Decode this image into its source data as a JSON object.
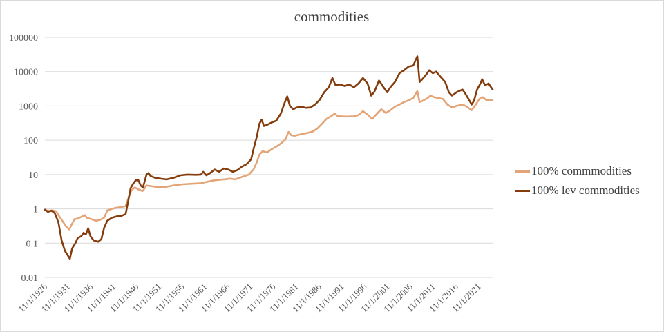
{
  "chart_data": {
    "type": "line",
    "title": "commodities",
    "xlabel": "",
    "ylabel": "",
    "y_scale": "log",
    "ylim": [
      0.01,
      100000
    ],
    "y_ticks": [
      "0.01",
      "0.1",
      "1",
      "10",
      "100",
      "1000",
      "10000",
      "100000"
    ],
    "x_tick_labels": [
      "11/1/1926",
      "11/1/1931",
      "11/1/1936",
      "11/1/1941",
      "11/1/1946",
      "11/1/1951",
      "11/1/1956",
      "11/1/1961",
      "11/1/1966",
      "11/1/1971",
      "11/1/1976",
      "11/1/1981",
      "11/1/1986",
      "11/1/1991",
      "11/1/1996",
      "11/1/2001",
      "11/1/2006",
      "11/1/2011",
      "11/1/2016",
      "11/1/2021"
    ],
    "xlim": [
      1926.83,
      2024.9
    ],
    "grid": "horizontal",
    "legend_position": "right",
    "series": [
      {
        "name": "100% commmodities",
        "color": "#E3A578",
        "points": [
          [
            1926.83,
            0.92
          ],
          [
            1927.5,
            0.88
          ],
          [
            1928.5,
            0.9
          ],
          [
            1929.3,
            0.85
          ],
          [
            1930.0,
            0.6
          ],
          [
            1930.8,
            0.42
          ],
          [
            1931.5,
            0.3
          ],
          [
            1932.2,
            0.25
          ],
          [
            1932.6,
            0.33
          ],
          [
            1933.3,
            0.5
          ],
          [
            1934.0,
            0.52
          ],
          [
            1935.0,
            0.6
          ],
          [
            1935.5,
            0.66
          ],
          [
            1936.0,
            0.55
          ],
          [
            1937.0,
            0.5
          ],
          [
            1938.0,
            0.45
          ],
          [
            1939.0,
            0.48
          ],
          [
            1939.8,
            0.55
          ],
          [
            1940.5,
            0.9
          ],
          [
            1941.5,
            1.0
          ],
          [
            1942.5,
            1.08
          ],
          [
            1943.5,
            1.12
          ],
          [
            1944.5,
            1.2
          ],
          [
            1945.2,
            2.2
          ],
          [
            1945.8,
            3.5
          ],
          [
            1946.5,
            4.2
          ],
          [
            1947.5,
            3.6
          ],
          [
            1948.2,
            3.3
          ],
          [
            1948.6,
            3.8
          ],
          [
            1949.0,
            4.8
          ],
          [
            1950.0,
            4.6
          ],
          [
            1951.0,
            4.4
          ],
          [
            1953.0,
            4.3
          ],
          [
            1955.0,
            4.8
          ],
          [
            1957.0,
            5.2
          ],
          [
            1959.0,
            5.4
          ],
          [
            1961.0,
            5.6
          ],
          [
            1962.5,
            6.2
          ],
          [
            1964.0,
            6.8
          ],
          [
            1966.0,
            7.2
          ],
          [
            1967.5,
            7.6
          ],
          [
            1968.5,
            7.2
          ],
          [
            1970.0,
            8.5
          ],
          [
            1971.5,
            10.0
          ],
          [
            1972.5,
            14.0
          ],
          [
            1973.2,
            22.0
          ],
          [
            1973.8,
            38.0
          ],
          [
            1974.5,
            48.0
          ],
          [
            1975.5,
            44.0
          ],
          [
            1976.5,
            55.0
          ],
          [
            1977.5,
            65.0
          ],
          [
            1978.5,
            80.0
          ],
          [
            1979.5,
            105.0
          ],
          [
            1980.2,
            175.0
          ],
          [
            1980.8,
            140.0
          ],
          [
            1981.5,
            135.0
          ],
          [
            1982.5,
            145.0
          ],
          [
            1983.5,
            155.0
          ],
          [
            1984.5,
            165.0
          ],
          [
            1985.5,
            180.0
          ],
          [
            1986.5,
            220.0
          ],
          [
            1987.5,
            300.0
          ],
          [
            1988.5,
            420.0
          ],
          [
            1989.5,
            500.0
          ],
          [
            1990.3,
            600.0
          ],
          [
            1990.8,
            520.0
          ],
          [
            1991.5,
            500.0
          ],
          [
            1993.0,
            490.0
          ],
          [
            1994.5,
            500.0
          ],
          [
            1995.5,
            540.0
          ],
          [
            1996.5,
            700.0
          ],
          [
            1997.5,
            560.0
          ],
          [
            1998.5,
            420.0
          ],
          [
            1999.5,
            580.0
          ],
          [
            2000.5,
            800.0
          ],
          [
            2001.5,
            620.0
          ],
          [
            2002.5,
            750.0
          ],
          [
            2003.5,
            950.0
          ],
          [
            2004.5,
            1100.0
          ],
          [
            2005.5,
            1300.0
          ],
          [
            2006.5,
            1450.0
          ],
          [
            2007.5,
            1700.0
          ],
          [
            2008.4,
            2700.0
          ],
          [
            2008.9,
            1300.0
          ],
          [
            2009.5,
            1400.0
          ],
          [
            2010.5,
            1650.0
          ],
          [
            2011.3,
            2000.0
          ],
          [
            2012.0,
            1800.0
          ],
          [
            2013.0,
            1700.0
          ],
          [
            2014.0,
            1600.0
          ],
          [
            2015.0,
            1100.0
          ],
          [
            2016.0,
            900.0
          ],
          [
            2017.0,
            1000.0
          ],
          [
            2018.3,
            1100.0
          ],
          [
            2019.0,
            1000.0
          ],
          [
            2020.3,
            750.0
          ],
          [
            2021.0,
            1000.0
          ],
          [
            2022.0,
            1600.0
          ],
          [
            2022.7,
            1800.0
          ],
          [
            2023.5,
            1500.0
          ],
          [
            2024.9,
            1450.0
          ]
        ]
      },
      {
        "name": "100% lev commodities",
        "color": "#843C0C",
        "points": [
          [
            1926.83,
            0.95
          ],
          [
            1927.5,
            0.82
          ],
          [
            1928.3,
            0.88
          ],
          [
            1929.0,
            0.75
          ],
          [
            1929.8,
            0.4
          ],
          [
            1930.5,
            0.12
          ],
          [
            1931.2,
            0.06
          ],
          [
            1931.8,
            0.045
          ],
          [
            1932.3,
            0.035
          ],
          [
            1932.8,
            0.07
          ],
          [
            1933.5,
            0.1
          ],
          [
            1934.0,
            0.14
          ],
          [
            1934.8,
            0.16
          ],
          [
            1935.3,
            0.2
          ],
          [
            1935.8,
            0.18
          ],
          [
            1936.3,
            0.27
          ],
          [
            1936.8,
            0.16
          ],
          [
            1937.5,
            0.12
          ],
          [
            1938.5,
            0.11
          ],
          [
            1939.2,
            0.13
          ],
          [
            1939.8,
            0.28
          ],
          [
            1940.5,
            0.45
          ],
          [
            1941.5,
            0.55
          ],
          [
            1942.5,
            0.6
          ],
          [
            1943.5,
            0.62
          ],
          [
            1944.5,
            0.7
          ],
          [
            1945.0,
            1.5
          ],
          [
            1945.6,
            4.0
          ],
          [
            1946.2,
            5.5
          ],
          [
            1946.8,
            7.0
          ],
          [
            1947.3,
            6.8
          ],
          [
            1947.8,
            4.8
          ],
          [
            1948.3,
            4.2
          ],
          [
            1948.7,
            6.5
          ],
          [
            1949.1,
            10.0
          ],
          [
            1949.5,
            11.0
          ],
          [
            1950.0,
            9.0
          ],
          [
            1951.0,
            8.0
          ],
          [
            1952.5,
            7.5
          ],
          [
            1953.5,
            7.2
          ],
          [
            1955.0,
            8.0
          ],
          [
            1956.5,
            9.5
          ],
          [
            1958.0,
            10.0
          ],
          [
            1960.0,
            9.8
          ],
          [
            1961.0,
            10.0
          ],
          [
            1961.5,
            12.0
          ],
          [
            1962.2,
            9.5
          ],
          [
            1963.0,
            11.0
          ],
          [
            1964.0,
            14.0
          ],
          [
            1965.0,
            12.0
          ],
          [
            1966.0,
            15.0
          ],
          [
            1967.0,
            14.0
          ],
          [
            1968.0,
            12.0
          ],
          [
            1969.0,
            13.5
          ],
          [
            1970.0,
            17.0
          ],
          [
            1971.0,
            20.0
          ],
          [
            1972.0,
            28.0
          ],
          [
            1972.6,
            60.0
          ],
          [
            1973.2,
            120.0
          ],
          [
            1973.8,
            300.0
          ],
          [
            1974.3,
            400.0
          ],
          [
            1974.8,
            260.0
          ],
          [
            1975.5,
            280.0
          ],
          [
            1976.5,
            330.0
          ],
          [
            1977.5,
            370.0
          ],
          [
            1978.5,
            600.0
          ],
          [
            1979.3,
            1200.0
          ],
          [
            1979.9,
            1900.0
          ],
          [
            1980.5,
            1000.0
          ],
          [
            1981.2,
            800.0
          ],
          [
            1982.0,
            900.0
          ],
          [
            1983.0,
            950.0
          ],
          [
            1984.0,
            880.0
          ],
          [
            1985.0,
            900.0
          ],
          [
            1986.0,
            1100.0
          ],
          [
            1987.0,
            1500.0
          ],
          [
            1988.0,
            2500.0
          ],
          [
            1989.0,
            3500.0
          ],
          [
            1989.8,
            6500.0
          ],
          [
            1990.5,
            4000.0
          ],
          [
            1991.5,
            4200.0
          ],
          [
            1992.5,
            3800.0
          ],
          [
            1993.5,
            4200.0
          ],
          [
            1994.5,
            3500.0
          ],
          [
            1995.5,
            4500.0
          ],
          [
            1996.5,
            6500.0
          ],
          [
            1997.5,
            4500.0
          ],
          [
            1998.3,
            2000.0
          ],
          [
            1999.0,
            2600.0
          ],
          [
            2000.0,
            5500.0
          ],
          [
            2001.0,
            3500.0
          ],
          [
            2001.8,
            2500.0
          ],
          [
            2002.5,
            3500.0
          ],
          [
            2003.5,
            5000.0
          ],
          [
            2004.5,
            9000.0
          ],
          [
            2005.5,
            11000.0
          ],
          [
            2006.5,
            14000.0
          ],
          [
            2007.5,
            15000.0
          ],
          [
            2008.4,
            28000.0
          ],
          [
            2008.9,
            5000.0
          ],
          [
            2009.5,
            6000.0
          ],
          [
            2010.3,
            8000.0
          ],
          [
            2011.0,
            11000.0
          ],
          [
            2011.8,
            9000.0
          ],
          [
            2012.5,
            10000.0
          ],
          [
            2013.5,
            7000.0
          ],
          [
            2014.5,
            5000.0
          ],
          [
            2015.3,
            2500.0
          ],
          [
            2016.0,
            2000.0
          ],
          [
            2017.0,
            2500.0
          ],
          [
            2018.3,
            3000.0
          ],
          [
            2019.0,
            2200.0
          ],
          [
            2020.3,
            1100.0
          ],
          [
            2020.8,
            1400.0
          ],
          [
            2021.5,
            3000.0
          ],
          [
            2022.2,
            4500.0
          ],
          [
            2022.6,
            6000.0
          ],
          [
            2023.2,
            4000.0
          ],
          [
            2024.0,
            4500.0
          ],
          [
            2024.9,
            3000.0
          ]
        ]
      }
    ]
  }
}
